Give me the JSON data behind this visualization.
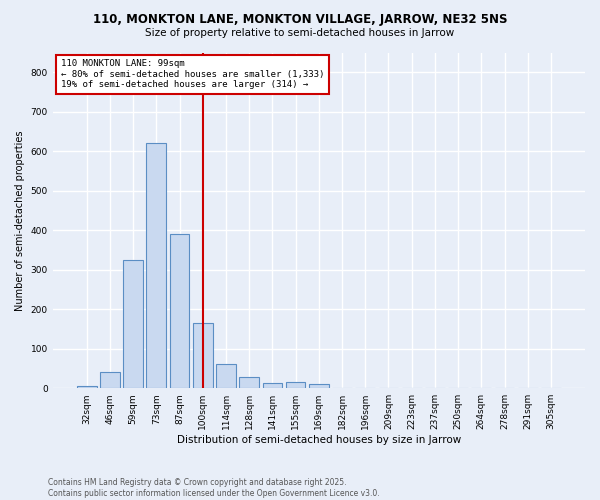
{
  "title1": "110, MONKTON LANE, MONKTON VILLAGE, JARROW, NE32 5NS",
  "title2": "Size of property relative to semi-detached houses in Jarrow",
  "xlabel": "Distribution of semi-detached houses by size in Jarrow",
  "ylabel": "Number of semi-detached properties",
  "categories": [
    "32sqm",
    "46sqm",
    "59sqm",
    "73sqm",
    "87sqm",
    "100sqm",
    "114sqm",
    "128sqm",
    "141sqm",
    "155sqm",
    "169sqm",
    "182sqm",
    "196sqm",
    "209sqm",
    "223sqm",
    "237sqm",
    "250sqm",
    "264sqm",
    "278sqm",
    "291sqm",
    "305sqm"
  ],
  "values": [
    5,
    42,
    325,
    622,
    390,
    165,
    62,
    28,
    12,
    16,
    10,
    0,
    0,
    0,
    0,
    0,
    0,
    0,
    0,
    0,
    0
  ],
  "bar_color": "#c9d9f0",
  "bar_edge_color": "#5b8ec4",
  "vline_index": 5,
  "annotation_title": "110 MONKTON LANE: 99sqm",
  "annotation_line1": "← 80% of semi-detached houses are smaller (1,333)",
  "annotation_line2": "19% of semi-detached houses are larger (314) →",
  "vline_color": "#cc0000",
  "annotation_box_color": "#cc0000",
  "background_color": "#e8eef8",
  "grid_color": "#ffffff",
  "footer": "Contains HM Land Registry data © Crown copyright and database right 2025.\nContains public sector information licensed under the Open Government Licence v3.0.",
  "ylim": [
    0,
    850
  ],
  "yticks": [
    0,
    100,
    200,
    300,
    400,
    500,
    600,
    700,
    800
  ],
  "title1_fontsize": 8.5,
  "title2_fontsize": 7.5,
  "xlabel_fontsize": 7.5,
  "ylabel_fontsize": 7.0,
  "tick_fontsize": 6.5,
  "ann_fontsize": 6.5,
  "footer_fontsize": 5.5
}
